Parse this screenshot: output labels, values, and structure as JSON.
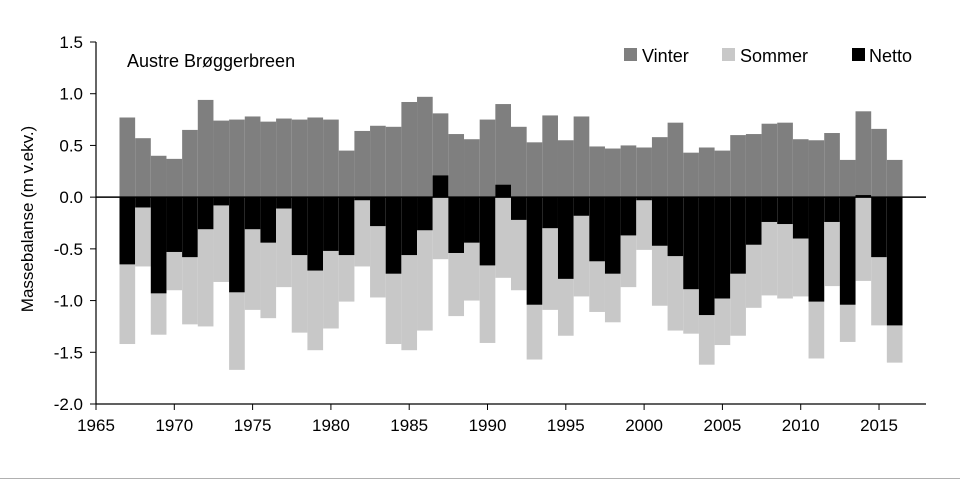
{
  "chart_data": {
    "type": "bar",
    "title": "Austre Brøggerbreen",
    "xlabel": "",
    "ylabel": "Massebalanse (m v.ekv.)",
    "ylim": [
      -2.0,
      1.5
    ],
    "xlim": [
      1965,
      2018
    ],
    "y_ticks": [
      "1.5",
      "1.0",
      "0.5",
      "0.0",
      "-0.5",
      "-1.0",
      "-1.5",
      "-2.0"
    ],
    "x_ticks": [
      "1965",
      "1970",
      "1975",
      "1980",
      "1985",
      "1990",
      "1995",
      "2000",
      "2005",
      "2010",
      "2015"
    ],
    "legend_position": "top-right",
    "grid": false,
    "colors": {
      "Vinter": "#7f7f7f",
      "Sommer": "#c8c8c8",
      "Netto": "#000000"
    },
    "x": [
      1967,
      1968,
      1969,
      1970,
      1971,
      1972,
      1973,
      1974,
      1975,
      1976,
      1977,
      1978,
      1979,
      1980,
      1981,
      1982,
      1983,
      1984,
      1985,
      1986,
      1987,
      1988,
      1989,
      1990,
      1991,
      1992,
      1993,
      1994,
      1995,
      1996,
      1997,
      1998,
      1999,
      2000,
      2001,
      2002,
      2003,
      2004,
      2005,
      2006,
      2007,
      2008,
      2009,
      2010,
      2011,
      2012,
      2013,
      2014,
      2015,
      2016
    ],
    "series": [
      {
        "name": "Vinter",
        "values": [
          0.77,
          0.57,
          0.4,
          0.37,
          0.65,
          0.94,
          0.74,
          0.75,
          0.78,
          0.73,
          0.76,
          0.75,
          0.77,
          0.75,
          0.45,
          0.64,
          0.69,
          0.68,
          0.92,
          0.97,
          0.81,
          0.61,
          0.56,
          0.75,
          0.9,
          0.68,
          0.53,
          0.79,
          0.55,
          0.78,
          0.49,
          0.47,
          0.5,
          0.48,
          0.58,
          0.72,
          0.43,
          0.48,
          0.45,
          0.6,
          0.61,
          0.71,
          0.72,
          0.56,
          0.55,
          0.62,
          0.36,
          0.83,
          0.66,
          0.36
        ]
      },
      {
        "name": "Sommer",
        "values": [
          -1.42,
          -0.67,
          -1.33,
          -0.9,
          -1.23,
          -1.25,
          -0.82,
          -1.67,
          -1.09,
          -1.17,
          -0.87,
          -1.31,
          -1.48,
          -1.27,
          -1.01,
          -0.67,
          -0.97,
          -1.42,
          -1.48,
          -1.29,
          -0.6,
          -1.15,
          -1.0,
          -1.41,
          -0.78,
          -0.9,
          -1.57,
          -1.09,
          -1.34,
          -0.96,
          -1.11,
          -1.21,
          -0.87,
          -0.51,
          -1.05,
          -1.29,
          -1.32,
          -1.62,
          -1.43,
          -1.34,
          -1.07,
          -0.95,
          -0.98,
          -0.96,
          -1.56,
          -0.86,
          -1.4,
          -0.81,
          -1.24,
          -1.6
        ]
      },
      {
        "name": "Netto",
        "values": [
          -0.65,
          -0.1,
          -0.93,
          -0.53,
          -0.58,
          -0.31,
          -0.08,
          -0.92,
          -0.31,
          -0.44,
          -0.11,
          -0.56,
          -0.71,
          -0.52,
          -0.56,
          -0.03,
          -0.28,
          -0.74,
          -0.56,
          -0.32,
          0.21,
          -0.54,
          -0.44,
          -0.66,
          0.12,
          -0.22,
          -1.04,
          -0.3,
          -0.79,
          -0.18,
          -0.62,
          -0.74,
          -0.37,
          -0.03,
          -0.47,
          -0.57,
          -0.89,
          -1.14,
          -0.98,
          -0.74,
          -0.46,
          -0.24,
          -0.26,
          -0.4,
          -1.01,
          -0.24,
          -1.04,
          0.02,
          -0.58,
          -1.24
        ]
      }
    ]
  }
}
